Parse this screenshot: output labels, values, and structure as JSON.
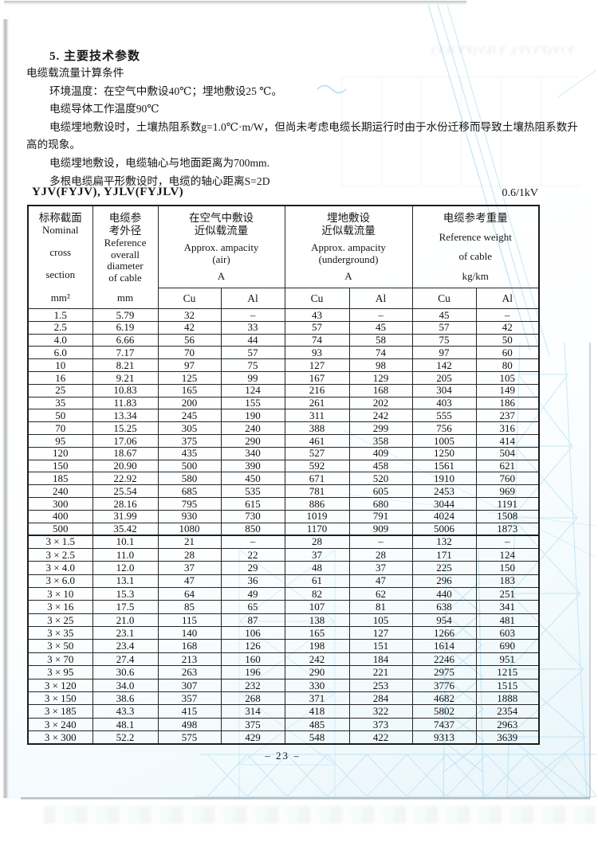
{
  "document": {
    "heading": "5. 主要技术参数",
    "paragraphs": [
      {
        "text": "电缆载流量计算条件",
        "indent": 0
      },
      {
        "text": "环境温度：在空气中敷设40℃；埋地敷设25 ℃。",
        "indent": 1
      },
      {
        "text": "电缆导体工作温度90℃",
        "indent": 1
      },
      {
        "text": "电缆埋地敷设时，土壤热阻系数g=1.0℃·m/W，但尚未考虑电缆长期运行时由于水份迁移而导致土壤热阻系数升",
        "indent": 1
      },
      {
        "text": "高的现象。",
        "indent": 0
      },
      {
        "text": "电缆埋地敷设，电缆轴心与地面距离为700mm.",
        "indent": 1
      },
      {
        "text": "多根电缆扁平形敷设时，电缆的轴心距离S=2D",
        "indent": 1
      }
    ],
    "table_caption_left": "YJV(FYJV), YJLV(FYJLV)",
    "table_caption_right": "0.6/1kV",
    "page_number": "– 23 –",
    "ghost_text": "YJV(FYJV), YJLV(FYJLV)"
  },
  "table": {
    "header": {
      "col1": {
        "zh": "标称截面",
        "en_a": "Nominal",
        "en_b": "cross",
        "en_c": "section",
        "unit": "mm²"
      },
      "col2": {
        "zh_a": "电缆参",
        "zh_b": "考外径",
        "en_a": "Reference",
        "en_b": "overall",
        "en_c": "diameter",
        "en_d": "of cable",
        "unit": "mm"
      },
      "air": {
        "zh_a": "在空气中敷设",
        "zh_b": "近似载流量",
        "en_a": "Approx. ampacity",
        "en_b": "(air)",
        "unit": "A"
      },
      "underground": {
        "zh_a": "埋地敷设",
        "zh_b": "近似载流量",
        "en_a": "Approx. ampacity",
        "en_b": "(underground)",
        "unit": "A"
      },
      "weight": {
        "zh": "电缆参考重量",
        "en_a": "Reference weight",
        "en_b": "of cable",
        "unit": "kg/km"
      },
      "sub": [
        "Cu",
        "Al",
        "Cu",
        "Al",
        "Cu",
        "Al"
      ]
    },
    "rows_single": [
      [
        "1.5",
        "5.79",
        "32",
        "–",
        "43",
        "–",
        "45",
        "–"
      ],
      [
        "2.5",
        "6.19",
        "42",
        "33",
        "57",
        "45",
        "57",
        "42"
      ],
      [
        "4.0",
        "6.66",
        "56",
        "44",
        "74",
        "58",
        "75",
        "50"
      ],
      [
        "6.0",
        "7.17",
        "70",
        "57",
        "93",
        "74",
        "97",
        "60"
      ],
      [
        "10",
        "8.21",
        "97",
        "75",
        "127",
        "98",
        "142",
        "80"
      ],
      [
        "16",
        "9.21",
        "125",
        "99",
        "167",
        "129",
        "205",
        "105"
      ],
      [
        "25",
        "10.83",
        "165",
        "124",
        "216",
        "168",
        "304",
        "149"
      ],
      [
        "35",
        "11.83",
        "200",
        "155",
        "261",
        "202",
        "403",
        "186"
      ],
      [
        "50",
        "13.34",
        "245",
        "190",
        "311",
        "242",
        "555",
        "237"
      ],
      [
        "70",
        "15.25",
        "305",
        "240",
        "388",
        "299",
        "756",
        "316"
      ],
      [
        "95",
        "17.06",
        "375",
        "290",
        "461",
        "358",
        "1005",
        "414"
      ],
      [
        "120",
        "18.67",
        "435",
        "340",
        "527",
        "409",
        "1250",
        "504"
      ],
      [
        "150",
        "20.90",
        "500",
        "390",
        "592",
        "458",
        "1561",
        "621"
      ],
      [
        "185",
        "22.92",
        "580",
        "450",
        "671",
        "520",
        "1910",
        "760"
      ],
      [
        "240",
        "25.54",
        "685",
        "535",
        "781",
        "605",
        "2453",
        "969"
      ],
      [
        "300",
        "28.16",
        "795",
        "615",
        "886",
        "680",
        "3044",
        "1191"
      ],
      [
        "400",
        "31.99",
        "930",
        "730",
        "1019",
        "791",
        "4024",
        "1508"
      ],
      [
        "500",
        "35.42",
        "1080",
        "850",
        "1170",
        "909",
        "5006",
        "1873"
      ]
    ],
    "rows_triple": [
      [
        "3 × 1.5",
        "10.1",
        "21",
        "–",
        "28",
        "–",
        "132",
        "–"
      ],
      [
        "3 × 2.5",
        "11.0",
        "28",
        "22",
        "37",
        "28",
        "171",
        "124"
      ],
      [
        "3 × 4.0",
        "12.0",
        "37",
        "29",
        "48",
        "37",
        "225",
        "150"
      ],
      [
        "3 × 6.0",
        "13.1",
        "47",
        "36",
        "61",
        "47",
        "296",
        "183"
      ],
      [
        "3 × 10",
        "15.3",
        "64",
        "49",
        "82",
        "62",
        "440",
        "251"
      ],
      [
        "3 × 16",
        "17.5",
        "85",
        "65",
        "107",
        "81",
        "638",
        "341"
      ],
      [
        "3 × 25",
        "21.0",
        "115",
        "87",
        "138",
        "105",
        "954",
        "481"
      ],
      [
        "3 × 35",
        "23.1",
        "140",
        "106",
        "165",
        "127",
        "1266",
        "603"
      ],
      [
        "3 × 50",
        "23.4",
        "168",
        "126",
        "198",
        "151",
        "1614",
        "690"
      ],
      [
        "3 × 70",
        "27.4",
        "213",
        "160",
        "242",
        "184",
        "2246",
        "951"
      ],
      [
        "3 × 95",
        "30.6",
        "263",
        "196",
        "290",
        "221",
        "2975",
        "1215"
      ],
      [
        "3 × 120",
        "34.0",
        "307",
        "232",
        "330",
        "253",
        "3776",
        "1515"
      ],
      [
        "3 × 150",
        "38.6",
        "357",
        "268",
        "371",
        "284",
        "4682",
        "1888"
      ],
      [
        "3 × 185",
        "43.3",
        "415",
        "314",
        "418",
        "322",
        "5802",
        "2354"
      ],
      [
        "3 × 240",
        "48.1",
        "498",
        "375",
        "485",
        "373",
        "7437",
        "2963"
      ],
      [
        "3 × 300",
        "52.2",
        "575",
        "429",
        "548",
        "422",
        "9313",
        "3639"
      ]
    ]
  },
  "watermark": {
    "color": "#a6d9ef"
  }
}
